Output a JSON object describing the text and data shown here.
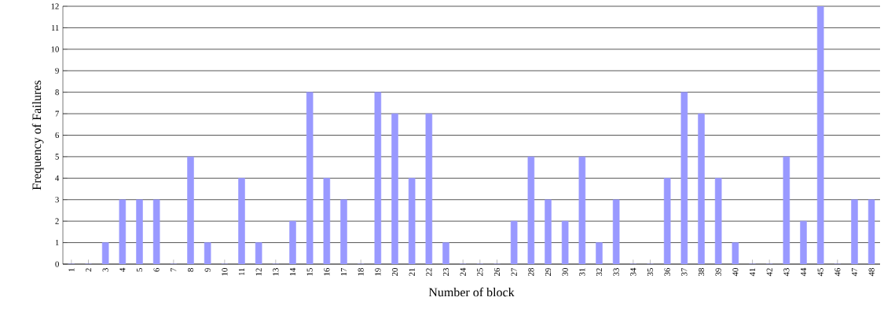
{
  "chart_data": {
    "type": "bar",
    "xlabel": "Number of block",
    "ylabel": "Frequency of Failures",
    "categories": [
      "1",
      "2",
      "3",
      "4",
      "5",
      "6",
      "7",
      "8",
      "9",
      "10",
      "11",
      "12",
      "13",
      "14",
      "15",
      "16",
      "17",
      "18",
      "19",
      "20",
      "21",
      "22",
      "23",
      "24",
      "25",
      "26",
      "27",
      "28",
      "29",
      "30",
      "31",
      "32",
      "33",
      "34",
      "35",
      "36",
      "37",
      "38",
      "39",
      "40",
      "41",
      "42",
      "43",
      "44",
      "45",
      "46",
      "47",
      "48"
    ],
    "values": [
      0,
      0,
      1,
      3,
      3,
      3,
      0,
      5,
      1,
      0,
      4,
      1,
      0,
      2,
      8,
      4,
      3,
      0,
      8,
      7,
      4,
      7,
      1,
      0,
      0,
      0,
      2,
      5,
      3,
      2,
      5,
      1,
      3,
      0,
      0,
      4,
      8,
      7,
      4,
      1,
      0,
      0,
      5,
      2,
      12,
      0,
      3,
      3
    ],
    "color": "#9999ff",
    "ylim": [
      0,
      12
    ],
    "yticks": [
      0,
      1,
      2,
      3,
      4,
      5,
      6,
      7,
      8,
      9,
      10,
      11,
      12
    ],
    "grid": "y"
  }
}
